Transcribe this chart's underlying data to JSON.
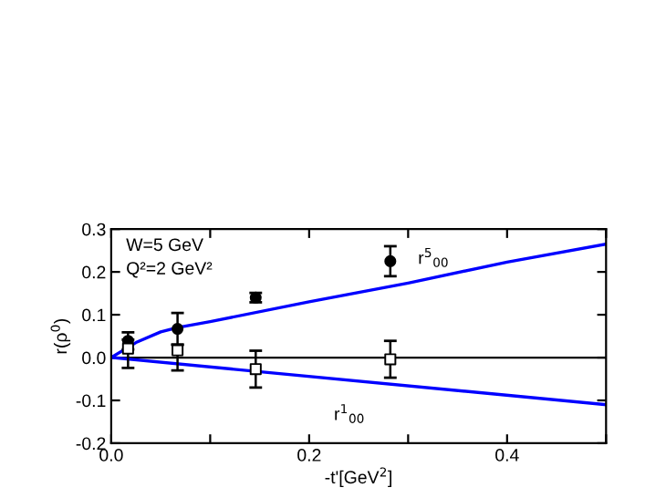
{
  "chart_data": {
    "type": "scatter",
    "xlabel": "-t'[GeV$^{2}$]",
    "ylabel": "r(ρ$^{0}$)",
    "xlim": [
      0,
      0.5
    ],
    "ylim": [
      -0.2,
      0.3
    ],
    "xticks": [
      {
        "value": 0,
        "label": "0.0"
      },
      {
        "value": 0.1,
        "label": null
      },
      0.2,
      {
        "value": 0.3,
        "label": null
      },
      0.4,
      {
        "value": 0.5,
        "label": null
      }
    ],
    "yticks": [
      -0.2,
      -0.1,
      {
        "value": 0,
        "label": "0.0"
      },
      0.1,
      0.2,
      0.3
    ],
    "grid": false,
    "ref_lines": [
      {
        "axis": "y",
        "value": 0,
        "color": "#000000"
      }
    ],
    "annotations": [
      "W=5 GeV",
      "Q²=2 GeV²"
    ],
    "series": [
      {
        "type": "line",
        "name": "r$^{5}$$_{00}$",
        "color": "#0000ff",
        "marker": "none",
        "x": [
          0,
          0.025,
          0.05,
          0.067,
          0.1,
          0.2,
          0.3,
          0.4,
          0.5
        ],
        "values": [
          0,
          0.035,
          0.06,
          0.07,
          0.084,
          0.13,
          0.174,
          0.223,
          0.265
        ]
      },
      {
        "type": "line",
        "name": "r$^{1}$$_{00}$",
        "color": "#0000ff",
        "marker": "none",
        "x": [
          0,
          0.5
        ],
        "values": [
          0,
          -0.11
        ]
      },
      {
        "color": "#000000",
        "marker": "circle",
        "x": [
          0.017,
          0.067,
          0.146,
          0.282
        ],
        "values": [
          0.039,
          0.067,
          0.14,
          0.225
        ],
        "errors": [
          0.02,
          0.037,
          0.011,
          0.035
        ]
      },
      {
        "color": "#ffffff",
        "marker": "square",
        "x": [
          0.017,
          0.067,
          0.146,
          0.282
        ],
        "values": [
          0.021,
          0.017,
          -0.027,
          -0.004
        ],
        "errors": [
          [
            -0.024,
            0.042
          ],
          [
            -0.03,
            0.03
          ],
          [
            -0.07,
            0.016
          ],
          [
            -0.047,
            0.039
          ]
        ]
      }
    ]
  }
}
